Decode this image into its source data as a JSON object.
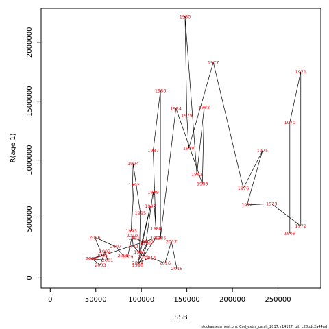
{
  "chart_data": {
    "type": "scatter",
    "title": "",
    "xlabel": "SSB",
    "ylabel": "R(age 1)",
    "xlim": [
      -10000,
      297000
    ],
    "ylim": [
      -85000,
      2290000
    ],
    "x_ticks": [
      {
        "value": 0,
        "label": "0"
      },
      {
        "value": 50000,
        "label": "50000"
      },
      {
        "value": 100000,
        "label": "100000"
      },
      {
        "value": 150000,
        "label": "150000"
      },
      {
        "value": 200000,
        "label": "200000"
      },
      {
        "value": 250000,
        "label": "250000"
      }
    ],
    "y_ticks": [
      {
        "value": 0,
        "label": "0"
      },
      {
        "value": 500000,
        "label": "500000"
      },
      {
        "value": 1000000,
        "label": "1000000"
      },
      {
        "value": 1500000,
        "label": "1500000"
      },
      {
        "value": 2000000,
        "label": "2000000"
      }
    ],
    "grid": false,
    "connected": true,
    "points": [
      {
        "label": "1969",
        "x": 263000,
        "y": 380000
      },
      {
        "label": "1970",
        "x": 263000,
        "y": 1320000
      },
      {
        "label": "1971",
        "x": 275000,
        "y": 1750000
      },
      {
        "label": "1972",
        "x": 275000,
        "y": 440000
      },
      {
        "label": "1973",
        "x": 243000,
        "y": 630000
      },
      {
        "label": "1974",
        "x": 216000,
        "y": 620000
      },
      {
        "label": "1975",
        "x": 233000,
        "y": 1080000
      },
      {
        "label": "1976",
        "x": 212000,
        "y": 760000
      },
      {
        "label": "1977",
        "x": 179000,
        "y": 1830000
      },
      {
        "label": "1978",
        "x": 152000,
        "y": 1100000
      },
      {
        "label": "1979",
        "x": 150000,
        "y": 1380000
      },
      {
        "label": "1980",
        "x": 148000,
        "y": 2220000
      },
      {
        "label": "1981",
        "x": 161000,
        "y": 880000
      },
      {
        "label": "1982",
        "x": 169000,
        "y": 1450000
      },
      {
        "label": "1983",
        "x": 167000,
        "y": 800000
      },
      {
        "label": "1984",
        "x": 138000,
        "y": 1440000
      },
      {
        "label": "1985",
        "x": 121000,
        "y": 340000
      },
      {
        "label": "1986",
        "x": 121000,
        "y": 1590000
      },
      {
        "label": "1987",
        "x": 113000,
        "y": 1080000
      },
      {
        "label": "1988",
        "x": 116000,
        "y": 420000
      },
      {
        "label": "1989",
        "x": 113000,
        "y": 730000
      },
      {
        "label": "1990",
        "x": 105000,
        "y": 295000
      },
      {
        "label": "1991",
        "x": 92000,
        "y": 340000
      },
      {
        "label": "1992",
        "x": 92000,
        "y": 790000
      },
      {
        "label": "1993",
        "x": 89000,
        "y": 400000
      },
      {
        "label": "1994",
        "x": 91000,
        "y": 970000
      },
      {
        "label": "1995",
        "x": 99000,
        "y": 550000
      },
      {
        "label": "1996",
        "x": 98000,
        "y": 220000
      },
      {
        "label": "1997",
        "x": 110000,
        "y": 610000
      },
      {
        "label": "1998",
        "x": 96000,
        "y": 110000
      },
      {
        "label": "1999",
        "x": 116000,
        "y": 340000
      },
      {
        "label": "2000",
        "x": 46000,
        "y": 160000
      },
      {
        "label": "2001",
        "x": 63000,
        "y": 150000
      },
      {
        "label": "2002",
        "x": 60000,
        "y": 225000
      },
      {
        "label": "2003",
        "x": 55000,
        "y": 110000
      },
      {
        "label": "2004",
        "x": 45000,
        "y": 165000
      },
      {
        "label": "2005",
        "x": 57000,
        "y": 190000
      },
      {
        "label": "2006",
        "x": 49000,
        "y": 345000
      },
      {
        "label": "2007",
        "x": 72000,
        "y": 265000
      },
      {
        "label": "2008",
        "x": 80000,
        "y": 190000
      },
      {
        "label": "2009",
        "x": 85000,
        "y": 180000
      },
      {
        "label": "2010",
        "x": 90000,
        "y": 360000
      },
      {
        "label": "2011",
        "x": 91000,
        "y": 270000
      },
      {
        "label": "2012",
        "x": 102000,
        "y": 180000
      },
      {
        "label": "2013",
        "x": 107000,
        "y": 310000
      },
      {
        "label": "2014",
        "x": 96000,
        "y": 130000
      },
      {
        "label": "2015",
        "x": 110000,
        "y": 170000
      },
      {
        "label": "2016",
        "x": 126000,
        "y": 125000
      },
      {
        "label": "2017",
        "x": 133000,
        "y": 310000
      },
      {
        "label": "2018",
        "x": 139000,
        "y": 80000
      }
    ],
    "footnote": "stockassessment.org, Cod_extra_catch_2017, r14127, git: c28bdc2a44ad"
  }
}
